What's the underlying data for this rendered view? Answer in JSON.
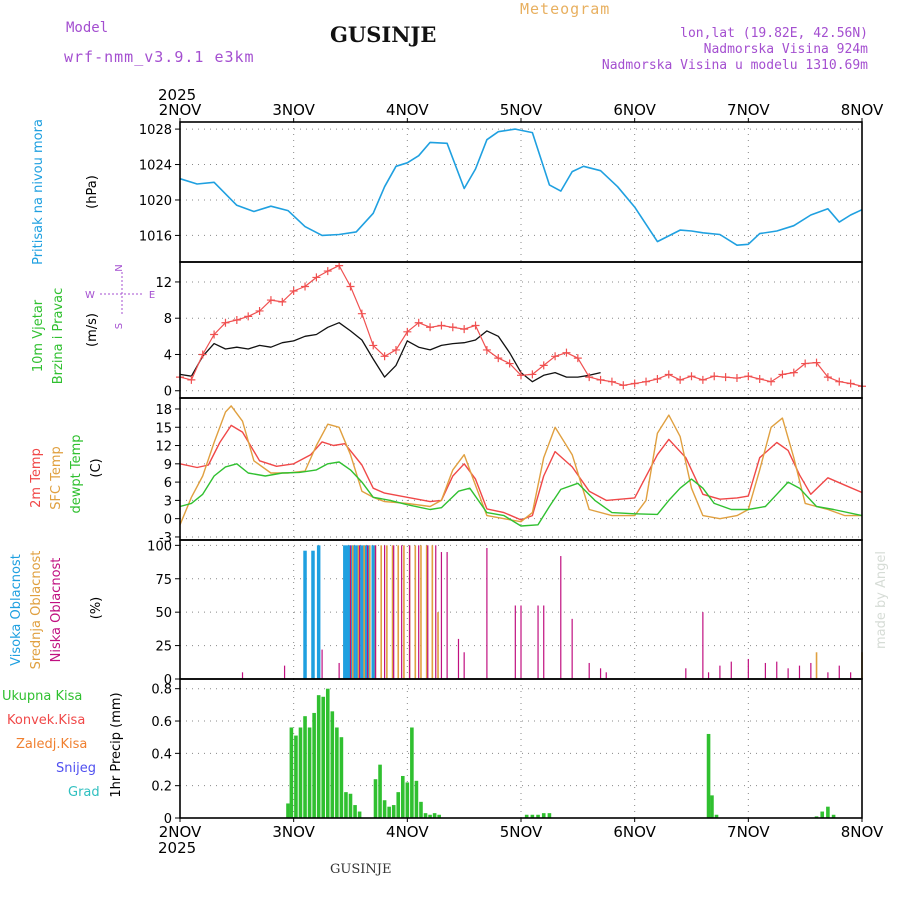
{
  "header": {
    "model_label": "Model",
    "model_version": "wrf-nmm_v3.9.1  e3km",
    "title": "GUSINJE",
    "product": "Meteogram",
    "location": "lon,lat (19.82E, 42.56N)",
    "elevation": "Nadmorska Visina 924m",
    "model_elevation": "Nadmorska Visina u modelu 1310.69m"
  },
  "footer": {
    "station": "GUSINJE"
  },
  "watermark": "made by Angel",
  "x_axis": {
    "year": "2025",
    "ticks": [
      "2NOV",
      "3NOV",
      "4NOV",
      "5NOV",
      "6NOV",
      "7NOV",
      "8NOV"
    ],
    "range_days": [
      0,
      6
    ]
  },
  "colors": {
    "pressure": "#1fa0e0",
    "wind_speed": "#111111",
    "wind_gust": "#f05050",
    "temp2m": "#f04848",
    "sfc_temp": "#e0a040",
    "dewpoint": "#30c030",
    "high_cloud": "#1fa0e0",
    "mid_cloud": "#e0a040",
    "low_cloud": "#c01080",
    "precip_total": "#30c030",
    "precip_conv": "#f04848",
    "precip_frz": "#f08030",
    "snow": "#5050f0",
    "hail": "#30c0c0"
  },
  "chart_data": [
    {
      "type": "line",
      "title": "Pritisak na nivou mora",
      "ylabel": "(hPa)",
      "ylim": [
        1013,
        1028.8
      ],
      "yticks": [
        1016,
        1020,
        1024,
        1028
      ],
      "series": [
        {
          "name": "Pritisak na nivou mora",
          "x": [
            0,
            0.15,
            0.3,
            0.5,
            0.65,
            0.8,
            0.95,
            1.1,
            1.25,
            1.4,
            1.55,
            1.7,
            1.8,
            1.9,
            2.0,
            2.1,
            2.2,
            2.35,
            2.5,
            2.6,
            2.7,
            2.8,
            2.95,
            3.1,
            3.25,
            3.35,
            3.45,
            3.55,
            3.7,
            3.85,
            4.0,
            4.2,
            4.4,
            4.5,
            4.6,
            4.75,
            4.9,
            5.0,
            5.1,
            5.25,
            5.4,
            5.55,
            5.7,
            5.8,
            5.9,
            6.0
          ],
          "values": [
            1022.4,
            1021.8,
            1022.0,
            1019.4,
            1018.7,
            1019.3,
            1018.8,
            1017.0,
            1016.0,
            1016.1,
            1016.4,
            1018.5,
            1021.5,
            1023.8,
            1024.2,
            1025.0,
            1026.5,
            1026.4,
            1021.3,
            1023.5,
            1026.8,
            1027.7,
            1028.0,
            1027.6,
            1021.7,
            1021.0,
            1023.2,
            1023.8,
            1023.3,
            1021.5,
            1019.2,
            1015.3,
            1016.6,
            1016.5,
            1016.3,
            1016.1,
            1014.9,
            1015.0,
            1016.2,
            1016.5,
            1017.1,
            1018.3,
            1019.0,
            1017.5,
            1018.3,
            1018.9
          ]
        }
      ]
    },
    {
      "type": "line",
      "title": "10m Vjetar Brzina i Pravac",
      "ylabel": "(m/s)",
      "ylim": [
        -0.8,
        14.2
      ],
      "yticks": [
        0,
        4,
        8,
        12
      ],
      "compass": [
        "N",
        "E",
        "S",
        "W"
      ],
      "series": [
        {
          "name": "wind speed",
          "x": [
            0,
            0.1,
            0.2,
            0.3,
            0.4,
            0.5,
            0.6,
            0.7,
            0.8,
            0.9,
            1.0,
            1.1,
            1.2,
            1.3,
            1.4,
            1.5,
            1.6,
            1.7,
            1.8,
            1.9,
            2.0,
            2.1,
            2.2,
            2.3,
            2.4,
            2.5,
            2.6,
            2.7,
            2.8,
            2.9,
            3.0,
            3.1,
            3.2,
            3.3,
            3.4,
            3.5,
            3.6,
            3.7
          ],
          "values": [
            1.8,
            1.6,
            3.8,
            5.2,
            4.6,
            4.8,
            4.6,
            5.0,
            4.8,
            5.3,
            5.5,
            6.0,
            6.2,
            7.0,
            7.5,
            6.6,
            5.6,
            3.5,
            1.5,
            2.8,
            5.5,
            4.8,
            4.5,
            5.0,
            5.2,
            5.3,
            5.6,
            6.6,
            6.0,
            4.2,
            2.0,
            1.0,
            1.7,
            2.0,
            1.5,
            1.5,
            1.7,
            2.0
          ]
        },
        {
          "name": "wind gust",
          "x": [
            0,
            0.1,
            0.2,
            0.3,
            0.4,
            0.5,
            0.6,
            0.7,
            0.8,
            0.9,
            1.0,
            1.1,
            1.2,
            1.3,
            1.4,
            1.5,
            1.6,
            1.7,
            1.8,
            1.9,
            2.0,
            2.1,
            2.2,
            2.3,
            2.4,
            2.5,
            2.6,
            2.7,
            2.8,
            2.9,
            3.0,
            3.1,
            3.2,
            3.3,
            3.4,
            3.5,
            3.6,
            3.7,
            3.8,
            3.9,
            4.0,
            4.1,
            4.2,
            4.3,
            4.4,
            4.5,
            4.6,
            4.7,
            4.8,
            4.9,
            5.0,
            5.1,
            5.2,
            5.3,
            5.4,
            5.5,
            5.6,
            5.7,
            5.8,
            5.9,
            6.0
          ],
          "values": [
            1.5,
            1.2,
            4.0,
            6.2,
            7.5,
            7.8,
            8.2,
            8.8,
            10.0,
            9.8,
            11.0,
            11.5,
            12.5,
            13.2,
            13.8,
            11.5,
            8.5,
            5.0,
            3.8,
            4.5,
            6.5,
            7.5,
            7.0,
            7.2,
            7.0,
            6.8,
            7.2,
            4.5,
            3.6,
            3.0,
            1.7,
            1.8,
            2.8,
            3.8,
            4.2,
            3.6,
            1.5,
            1.2,
            1.0,
            0.6,
            0.8,
            1.0,
            1.3,
            1.8,
            1.2,
            1.6,
            1.2,
            1.6,
            1.5,
            1.4,
            1.6,
            1.3,
            1.0,
            1.8,
            2.0,
            3.0,
            3.1,
            1.5,
            1.0,
            0.8,
            0.5
          ]
        }
      ]
    },
    {
      "type": "line",
      "title": "2m Temp / SFC Temp / dewpt Temp",
      "ylabel": "(C)",
      "ylim": [
        -3.5,
        19.8
      ],
      "yticks": [
        -3,
        0,
        3,
        6,
        9,
        12,
        15,
        18
      ],
      "series": [
        {
          "name": "2m Temp",
          "x": [
            0,
            0.15,
            0.25,
            0.35,
            0.45,
            0.55,
            0.7,
            0.85,
            1.0,
            1.15,
            1.25,
            1.35,
            1.45,
            1.6,
            1.7,
            1.8,
            2.0,
            2.2,
            2.3,
            2.4,
            2.5,
            2.6,
            2.7,
            2.85,
            3.0,
            3.1,
            3.2,
            3.3,
            3.45,
            3.6,
            3.75,
            4.0,
            4.2,
            4.3,
            4.45,
            4.6,
            4.75,
            4.9,
            5.0,
            5.1,
            5.25,
            5.35,
            5.45,
            5.55,
            5.7,
            5.85,
            6.0
          ],
          "values": [
            9.0,
            8.4,
            8.8,
            12.5,
            15.3,
            14.2,
            9.5,
            8.6,
            9.0,
            10.5,
            12.6,
            12.0,
            12.3,
            8.8,
            5.0,
            4.2,
            3.5,
            2.8,
            3.0,
            7.0,
            9.0,
            6.5,
            1.6,
            1.0,
            -0.2,
            0.5,
            7.0,
            11.0,
            8.5,
            4.5,
            3.0,
            3.4,
            10.5,
            13.0,
            10.0,
            4.0,
            3.2,
            3.4,
            3.7,
            10.0,
            12.5,
            11.2,
            7.2,
            4.0,
            6.7,
            5.5,
            4.3
          ]
        },
        {
          "name": "SFC Temp",
          "x": [
            0,
            0.1,
            0.2,
            0.3,
            0.4,
            0.45,
            0.55,
            0.65,
            0.8,
            0.95,
            1.1,
            1.2,
            1.3,
            1.4,
            1.5,
            1.6,
            1.7,
            1.8,
            2.0,
            2.2,
            2.3,
            2.4,
            2.5,
            2.6,
            2.7,
            2.85,
            3.0,
            3.1,
            3.2,
            3.3,
            3.45,
            3.6,
            3.8,
            4.0,
            4.1,
            4.2,
            4.3,
            4.4,
            4.5,
            4.6,
            4.75,
            4.9,
            5.0,
            5.1,
            5.2,
            5.3,
            5.4,
            5.5,
            5.6,
            5.7,
            5.85,
            6.0
          ],
          "values": [
            -1.0,
            3.5,
            7.0,
            12.5,
            17.5,
            18.5,
            16.0,
            9.5,
            7.5,
            7.5,
            7.8,
            12.0,
            15.5,
            15.0,
            10.5,
            4.5,
            3.5,
            2.8,
            2.5,
            2.0,
            3.0,
            8.0,
            10.5,
            5.5,
            0.5,
            0.0,
            -0.5,
            1.0,
            10.0,
            15.0,
            10.5,
            1.5,
            0.5,
            0.5,
            3.0,
            14.0,
            17.0,
            13.5,
            5.0,
            0.5,
            0.0,
            0.5,
            1.5,
            8.0,
            15.0,
            16.5,
            10.0,
            2.5,
            2.0,
            1.5,
            0.5,
            0.5
          ]
        },
        {
          "name": "dewpt Temp",
          "x": [
            0,
            0.1,
            0.2,
            0.3,
            0.4,
            0.5,
            0.6,
            0.75,
            0.9,
            1.05,
            1.2,
            1.3,
            1.4,
            1.5,
            1.6,
            1.7,
            1.85,
            2.0,
            2.2,
            2.3,
            2.45,
            2.55,
            2.7,
            2.85,
            3.0,
            3.15,
            3.25,
            3.35,
            3.5,
            3.65,
            3.8,
            4.0,
            4.2,
            4.3,
            4.4,
            4.5,
            4.6,
            4.7,
            4.85,
            5.0,
            5.15,
            5.25,
            5.35,
            5.45,
            5.6,
            5.75,
            6.0
          ],
          "values": [
            2.0,
            2.5,
            4.0,
            7.0,
            8.5,
            9.0,
            7.5,
            7.0,
            7.5,
            7.6,
            8.0,
            9.0,
            9.3,
            8.0,
            6.0,
            3.5,
            3.0,
            2.3,
            1.5,
            1.8,
            4.5,
            5.0,
            1.0,
            0.5,
            -1.2,
            -1.0,
            2.0,
            4.8,
            5.8,
            3.0,
            1.0,
            0.8,
            0.7,
            3.0,
            5.0,
            6.5,
            5.0,
            2.5,
            1.5,
            1.5,
            2.0,
            4.0,
            6.0,
            5.0,
            2.0,
            1.5,
            0.5
          ]
        }
      ]
    },
    {
      "type": "bar",
      "title": "Visoka / Srednja / Niska Oblacnost",
      "ylabel": "(%)",
      "ylim": [
        0,
        104
      ],
      "yticks": [
        0,
        25,
        50,
        75,
        100
      ],
      "series": [
        {
          "name": "Visoka Oblacnost",
          "x": [
            1.1,
            1.17,
            1.22,
            1.45,
            1.48,
            1.5,
            1.53,
            1.56,
            1.6,
            1.63,
            1.66,
            1.7
          ],
          "values": [
            96,
            96,
            100,
            100,
            100,
            100,
            100,
            100,
            100,
            100,
            100,
            100
          ]
        },
        {
          "name": "Srednja Oblacnost",
          "x": [
            1.52,
            1.57,
            1.62,
            1.67,
            1.72,
            1.77,
            1.82,
            1.87,
            1.92,
            1.97,
            2.02,
            2.07,
            2.12,
            2.17,
            2.22,
            2.27,
            5.6,
            6.0
          ],
          "values": [
            100,
            100,
            100,
            100,
            100,
            100,
            100,
            100,
            100,
            100,
            100,
            100,
            100,
            100,
            100,
            50,
            20,
            20
          ]
        },
        {
          "name": "Niska Oblacnost",
          "x": [
            0.55,
            0.92,
            1.25,
            1.4,
            1.5,
            1.58,
            1.65,
            1.72,
            1.8,
            1.88,
            1.95,
            2.02,
            2.1,
            2.18,
            2.25,
            2.3,
            2.35,
            2.45,
            2.5,
            2.7,
            2.95,
            3.0,
            3.15,
            3.2,
            3.35,
            3.45,
            3.6,
            3.7,
            3.75,
            4.45,
            4.6,
            4.65,
            4.75,
            4.85,
            5.0,
            5.15,
            5.25,
            5.35,
            5.45,
            5.55,
            5.7,
            5.8,
            5.9
          ],
          "values": [
            5,
            10,
            22,
            12,
            100,
            100,
            100,
            100,
            100,
            100,
            100,
            100,
            100,
            100,
            100,
            95,
            95,
            30,
            20,
            98,
            55,
            55,
            55,
            55,
            92,
            45,
            12,
            8,
            5,
            8,
            50,
            5,
            10,
            13,
            15,
            12,
            13,
            8,
            10,
            12,
            5,
            10,
            5
          ]
        }
      ]
    },
    {
      "type": "bar",
      "title": "1hr Precip",
      "ylabel": "1hr Precip (mm)",
      "ylim": [
        0,
        0.86
      ],
      "yticks": [
        0,
        0.2,
        0.4,
        0.6,
        0.8
      ],
      "ytick_labels": [
        "0",
        "0.2",
        "0.4",
        "0.6",
        "0.8"
      ],
      "legend": [
        "Ukupna Kisa",
        "Konvek.Kisa",
        "Zaledj.Kisa",
        "Snijeg",
        "Grad"
      ],
      "series": [
        {
          "name": "Ukupna Kisa",
          "x": [
            0.95,
            0.98,
            1.02,
            1.06,
            1.1,
            1.14,
            1.18,
            1.22,
            1.26,
            1.3,
            1.34,
            1.38,
            1.42,
            1.46,
            1.5,
            1.54,
            1.58,
            1.72,
            1.76,
            1.8,
            1.84,
            1.88,
            1.92,
            1.96,
            2.0,
            2.04,
            2.08,
            2.12,
            2.16,
            2.2,
            2.24,
            2.28,
            3.05,
            3.1,
            3.15,
            3.2,
            3.25,
            4.65,
            4.68,
            4.72,
            5.6,
            5.65,
            5.7,
            5.75
          ],
          "values": [
            0.09,
            0.56,
            0.51,
            0.56,
            0.63,
            0.56,
            0.65,
            0.76,
            0.75,
            0.8,
            0.66,
            0.56,
            0.5,
            0.16,
            0.15,
            0.08,
            0.04,
            0.24,
            0.33,
            0.11,
            0.07,
            0.08,
            0.16,
            0.26,
            0.22,
            0.56,
            0.23,
            0.1,
            0.03,
            0.02,
            0.03,
            0.02,
            0.02,
            0.02,
            0.02,
            0.03,
            0.03,
            0.52,
            0.14,
            0.02,
            0.01,
            0.04,
            0.07,
            0.02
          ]
        }
      ]
    }
  ]
}
